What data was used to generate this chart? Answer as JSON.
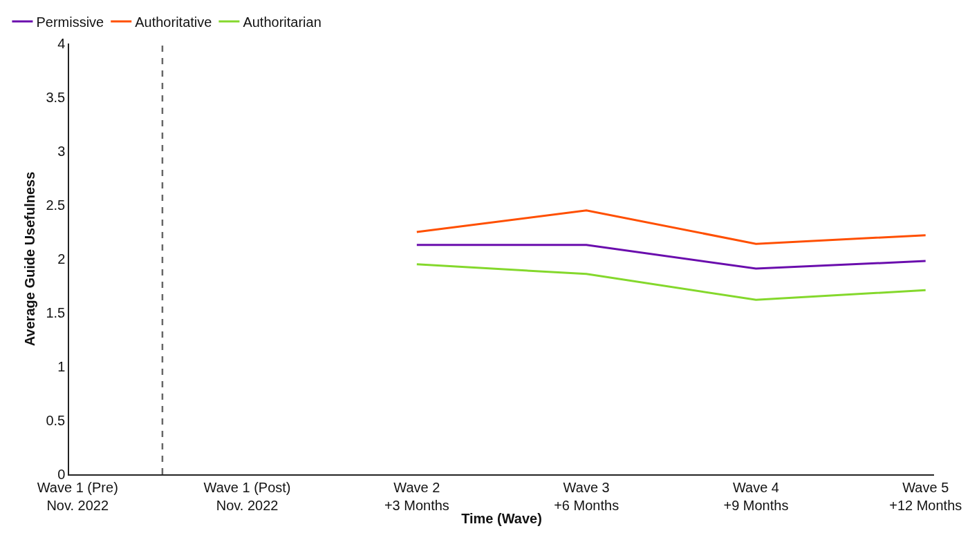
{
  "chart_data": {
    "type": "line",
    "xlabel": "Time (Wave)",
    "ylabel": "Average Guide Usefulness",
    "categories": [
      "Wave 1 (Pre)\nNov. 2022",
      "Wave 1 (Post)\nNov. 2022",
      "Wave 2\n+3 Months",
      "Wave 3\n+6 Months",
      "Wave 4\n+9 Months",
      "Wave 5\n+12 Months"
    ],
    "series": [
      {
        "name": "Permissive",
        "color": "#6a0dad",
        "values": [
          null,
          null,
          2.13,
          2.13,
          1.91,
          1.98
        ]
      },
      {
        "name": "Authoritative",
        "color": "#ff4f00",
        "values": [
          null,
          null,
          2.25,
          2.45,
          2.14,
          2.22
        ]
      },
      {
        "name": "Authoritarian",
        "color": "#84d82c",
        "values": [
          null,
          null,
          1.95,
          1.86,
          1.62,
          1.71
        ]
      }
    ],
    "ylim": [
      0,
      4
    ],
    "yticks": [
      0,
      0.5,
      1,
      1.5,
      2,
      2.5,
      3,
      3.5,
      4
    ],
    "grid": false,
    "legend": "top left",
    "marker": "none",
    "line_style": "solid"
  }
}
